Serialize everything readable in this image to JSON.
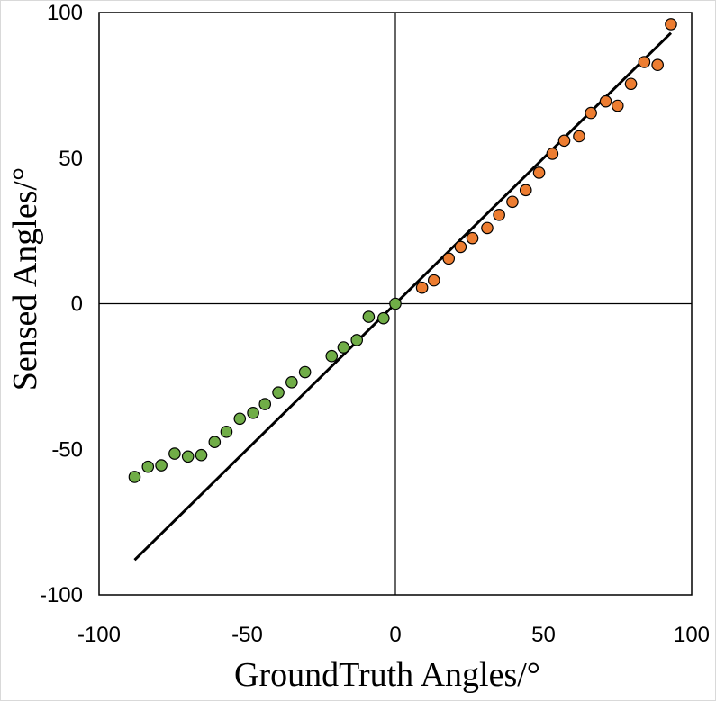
{
  "chart_data": {
    "type": "scatter",
    "title": "",
    "xlabel": "GroundTruth Angles/°",
    "ylabel": "Sensed Angles/°",
    "xlim": [
      -100,
      100
    ],
    "ylim": [
      -100,
      100
    ],
    "xticks": [
      -100,
      -50,
      0,
      50,
      100
    ],
    "yticks": [
      -100,
      -50,
      0,
      50,
      100
    ],
    "xtick_labels": [
      "-100",
      "-50",
      "0",
      "50",
      "100"
    ],
    "ytick_labels": [
      "-100",
      "-50",
      "0",
      "50",
      "100"
    ],
    "grid": false,
    "legend": "none",
    "series": [
      {
        "color": "#70ad47",
        "points": [
          [
            -88,
            -59.5
          ],
          [
            -83.5,
            -56
          ],
          [
            -79,
            -55.5
          ],
          [
            -74.5,
            -51.5
          ],
          [
            -70,
            -52.5
          ],
          [
            -65.5,
            -52
          ],
          [
            -61,
            -47.5
          ],
          [
            -57,
            -44
          ],
          [
            -52.5,
            -39.5
          ],
          [
            -48,
            -37.5
          ],
          [
            -44,
            -34.5
          ],
          [
            -39.5,
            -30.5
          ],
          [
            -35,
            -27
          ],
          [
            -30.5,
            -23.5
          ],
          [
            -21.5,
            -18
          ],
          [
            -17.5,
            -15
          ],
          [
            -13,
            -12.5
          ],
          [
            -9,
            -4.5
          ],
          [
            -4,
            -5
          ],
          [
            0,
            0
          ]
        ]
      },
      {
        "color": "#ed7d31",
        "points": [
          [
            9,
            5.5
          ],
          [
            13,
            8
          ],
          [
            18,
            15.5
          ],
          [
            22,
            19.5
          ],
          [
            26,
            22.5
          ],
          [
            31,
            26
          ],
          [
            35,
            30.5
          ],
          [
            39.5,
            35
          ],
          [
            44,
            39
          ],
          [
            48.5,
            45
          ],
          [
            53,
            51.5
          ],
          [
            57,
            56
          ],
          [
            62,
            57.5
          ],
          [
            66,
            65.5
          ],
          [
            71,
            69.5
          ],
          [
            75,
            68
          ],
          [
            79.5,
            75.5
          ],
          [
            84,
            83
          ],
          [
            88.5,
            82
          ],
          [
            93,
            96
          ]
        ]
      }
    ],
    "reference_line": {
      "color": "#000000",
      "points": [
        [
          -88,
          -88
        ],
        [
          93,
          93
        ]
      ]
    }
  }
}
